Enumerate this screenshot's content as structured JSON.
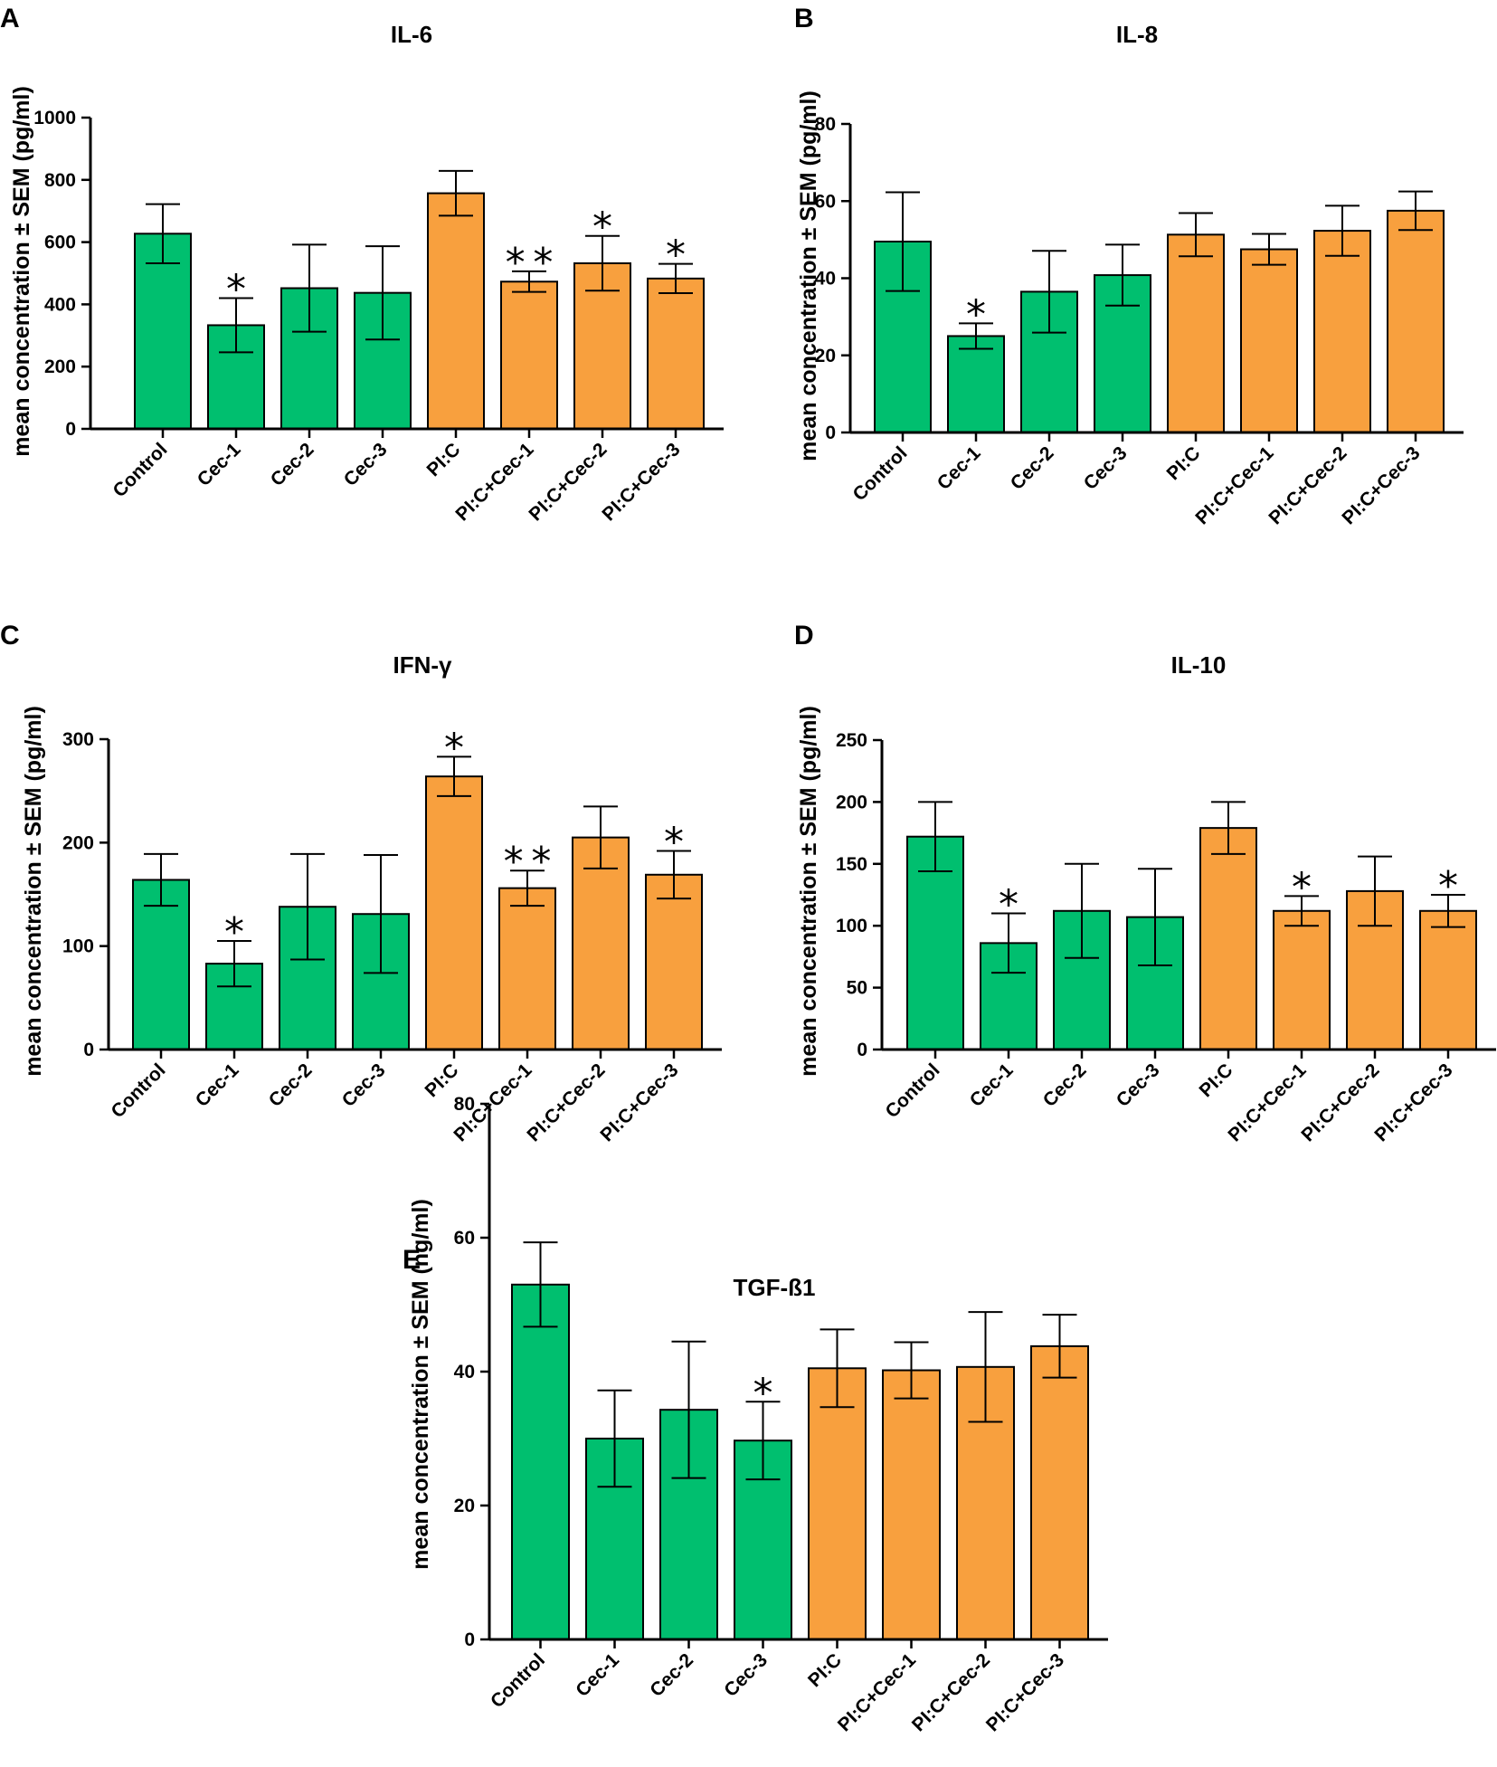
{
  "chart_data": [
    {
      "type": "bar",
      "panel": "A",
      "title": "IL-6",
      "xlabel": "",
      "ylabel": "mean concentration ± SEM (pg/ml)",
      "ylim": [
        0,
        1000
      ],
      "yticks": [
        0,
        200,
        400,
        600,
        800,
        1000
      ],
      "categories": [
        "Control",
        "Cec-1",
        "Cec-2",
        "Cec-3",
        "PI:C",
        "PI:C+Cec-1",
        "PI:C+Cec-2",
        "PI:C+Cec-3"
      ],
      "values": [
        627,
        333,
        452,
        437,
        757,
        473,
        532,
        483
      ],
      "errors": [
        95,
        87,
        140,
        150,
        72,
        33,
        88,
        47
      ],
      "significance": [
        "",
        "*",
        "",
        "",
        "",
        "**",
        "*",
        "*"
      ],
      "colors": [
        "#00bf6f",
        "#00bf6f",
        "#00bf6f",
        "#00bf6f",
        "#f8a03e",
        "#f8a03e",
        "#f8a03e",
        "#f8a03e"
      ]
    },
    {
      "type": "bar",
      "panel": "B",
      "title": "IL-8",
      "xlabel": "",
      "ylabel": "mean concentration ± SEM (pg/ml)",
      "ylim": [
        0,
        80
      ],
      "yticks": [
        0,
        20,
        40,
        60,
        80
      ],
      "categories": [
        "Control",
        "Cec-1",
        "Cec-2",
        "Cec-3",
        "PI:C",
        "PI:C+Cec-1",
        "PI:C+Cec-2",
        "PI:C+Cec-3"
      ],
      "values": [
        49.5,
        25,
        36.5,
        40.8,
        51.3,
        47.5,
        52.3,
        57.5
      ],
      "errors": [
        12.8,
        3.3,
        10.6,
        7.9,
        5.6,
        4.0,
        6.5,
        5.0
      ],
      "significance": [
        "",
        "*",
        "",
        "",
        "",
        "",
        "",
        ""
      ],
      "colors": [
        "#00bf6f",
        "#00bf6f",
        "#00bf6f",
        "#00bf6f",
        "#f8a03e",
        "#f8a03e",
        "#f8a03e",
        "#f8a03e"
      ]
    },
    {
      "type": "bar",
      "panel": "C",
      "title": "IFN-γ",
      "xlabel": "",
      "ylabel": "mean concentration ± SEM (pg/ml)",
      "ylim": [
        0,
        300
      ],
      "yticks": [
        0,
        100,
        200,
        300
      ],
      "categories": [
        "Control",
        "Cec-1",
        "Cec-2",
        "Cec-3",
        "PI:C",
        "PI:C+Cec-1",
        "PI:C+Cec-2",
        "PI:C+Cec-3"
      ],
      "values": [
        164,
        83,
        138,
        131,
        264,
        156,
        205,
        169
      ],
      "errors": [
        25,
        22,
        51,
        57,
        19,
        17,
        30,
        23
      ],
      "significance": [
        "",
        "*",
        "",
        "",
        "*",
        "**",
        "",
        "*"
      ],
      "colors": [
        "#00bf6f",
        "#00bf6f",
        "#00bf6f",
        "#00bf6f",
        "#f8a03e",
        "#f8a03e",
        "#f8a03e",
        "#f8a03e"
      ]
    },
    {
      "type": "bar",
      "panel": "D",
      "title": "IL-10",
      "xlabel": "",
      "ylabel": "mean concentration ± SEM (pg/ml)",
      "ylim": [
        0,
        250
      ],
      "yticks": [
        0,
        50,
        100,
        150,
        200,
        250
      ],
      "categories": [
        "Control",
        "Cec-1",
        "Cec-2",
        "Cec-3",
        "PI:C",
        "PI:C+Cec-1",
        "PI:C+Cec-2",
        "PI:C+Cec-3"
      ],
      "values": [
        172,
        86,
        112,
        107,
        179,
        112,
        128,
        112
      ],
      "errors": [
        28,
        24,
        38,
        39,
        21,
        12,
        28,
        13
      ],
      "significance": [
        "",
        "*",
        "",
        "",
        "",
        "*",
        "",
        "*"
      ],
      "colors": [
        "#00bf6f",
        "#00bf6f",
        "#00bf6f",
        "#00bf6f",
        "#f8a03e",
        "#f8a03e",
        "#f8a03e",
        "#f8a03e"
      ]
    },
    {
      "type": "bar",
      "panel": "E",
      "title": "TGF-ß1",
      "xlabel": "",
      "ylabel": "mean concentration ± SEM (ng/ml)",
      "ylim": [
        0,
        80
      ],
      "yticks": [
        0,
        20,
        40,
        60,
        80
      ],
      "categories": [
        "Control",
        "Cec-1",
        "Cec-2",
        "Cec-3",
        "PI:C",
        "PI:C+Cec-1",
        "PI:C+Cec-2",
        "PI:C+Cec-3"
      ],
      "values": [
        53,
        30,
        34.3,
        29.7,
        40.5,
        40.2,
        40.7,
        43.8
      ],
      "errors": [
        6.3,
        7.2,
        10.2,
        5.8,
        5.8,
        4.2,
        8.2,
        4.7
      ],
      "significance": [
        "",
        "",
        "",
        "*",
        "",
        "",
        "",
        ""
      ],
      "colors": [
        "#00bf6f",
        "#00bf6f",
        "#00bf6f",
        "#00bf6f",
        "#f8a03e",
        "#f8a03e",
        "#f8a03e",
        "#f8a03e"
      ]
    }
  ]
}
